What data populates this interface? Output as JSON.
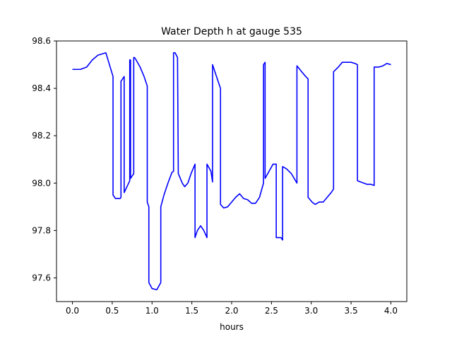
{
  "chart_data": {
    "type": "line",
    "title": "Water Depth h at gauge 535",
    "xlabel": "hours",
    "ylabel": "",
    "xlim": [
      -0.2,
      4.2
    ],
    "ylim": [
      97.5,
      98.6
    ],
    "xticks": [
      0.0,
      0.5,
      1.0,
      1.5,
      2.0,
      2.5,
      3.0,
      3.5,
      4.0
    ],
    "xtick_labels": [
      "0.0",
      "0.5",
      "1.0",
      "1.5",
      "2.0",
      "2.5",
      "3.0",
      "3.5",
      "4.0"
    ],
    "yticks": [
      97.6,
      97.8,
      98.0,
      98.2,
      98.4,
      98.6
    ],
    "ytick_labels": [
      "97.6",
      "97.8",
      "98.0",
      "98.2",
      "98.4",
      "98.6"
    ],
    "grid": false,
    "series": [
      {
        "color": "#0000ff",
        "x": [
          0.0,
          0.1,
          0.18,
          0.25,
          0.32,
          0.42,
          0.51,
          0.51,
          0.54,
          0.6,
          0.61,
          0.61,
          0.65,
          0.65,
          0.72,
          0.72,
          0.73,
          0.73,
          0.77,
          0.77,
          0.78,
          0.8,
          0.85,
          0.9,
          0.94,
          0.94,
          0.96,
          0.96,
          1.0,
          1.06,
          1.11,
          1.11,
          1.15,
          1.2,
          1.25,
          1.27,
          1.27,
          1.29,
          1.32,
          1.33,
          1.38,
          1.41,
          1.45,
          1.49,
          1.54,
          1.54,
          1.57,
          1.61,
          1.65,
          1.69,
          1.69,
          1.74,
          1.76,
          1.76,
          1.81,
          1.86,
          1.86,
          1.9,
          1.95,
          2.0,
          2.05,
          2.1,
          2.15,
          2.2,
          2.25,
          2.3,
          2.35,
          2.4,
          2.4,
          2.42,
          2.42,
          2.47,
          2.52,
          2.56,
          2.56,
          2.58,
          2.62,
          2.64,
          2.64,
          2.69,
          2.75,
          2.82,
          2.82,
          2.88,
          2.93,
          2.96,
          2.96,
          3.01,
          3.05,
          3.1,
          3.15,
          3.2,
          3.25,
          3.28,
          3.28,
          3.34,
          3.39,
          3.44,
          3.5,
          3.55,
          3.58,
          3.58,
          3.62,
          3.7,
          3.75,
          3.79,
          3.79,
          3.85,
          3.9,
          3.95,
          4.0
        ],
        "y": [
          98.48,
          98.48,
          98.49,
          98.52,
          98.54,
          98.55,
          98.45,
          97.95,
          97.935,
          97.935,
          97.94,
          98.43,
          98.45,
          97.96,
          98.01,
          98.52,
          98.52,
          98.02,
          98.04,
          98.53,
          98.53,
          98.52,
          98.49,
          98.45,
          98.41,
          97.92,
          97.9,
          97.58,
          97.555,
          97.55,
          97.58,
          97.9,
          97.95,
          98.0,
          98.045,
          98.05,
          98.55,
          98.55,
          98.53,
          98.04,
          98.0,
          97.985,
          98.0,
          98.04,
          98.08,
          97.77,
          97.8,
          97.82,
          97.8,
          97.77,
          98.08,
          98.05,
          98.005,
          98.5,
          98.45,
          98.4,
          97.91,
          97.895,
          97.9,
          97.92,
          97.94,
          97.955,
          97.935,
          97.93,
          97.915,
          97.915,
          97.94,
          98.0,
          98.5,
          98.51,
          98.02,
          98.05,
          98.08,
          98.08,
          97.77,
          97.77,
          97.77,
          97.76,
          98.07,
          98.06,
          98.04,
          98.0,
          98.495,
          98.47,
          98.45,
          98.44,
          97.94,
          97.92,
          97.91,
          97.92,
          97.92,
          97.94,
          97.96,
          97.975,
          98.47,
          98.49,
          98.51,
          98.51,
          98.51,
          98.505,
          98.5,
          98.01,
          98.005,
          97.995,
          97.995,
          97.99,
          98.49,
          98.49,
          98.495,
          98.505,
          98.5
        ]
      }
    ]
  }
}
